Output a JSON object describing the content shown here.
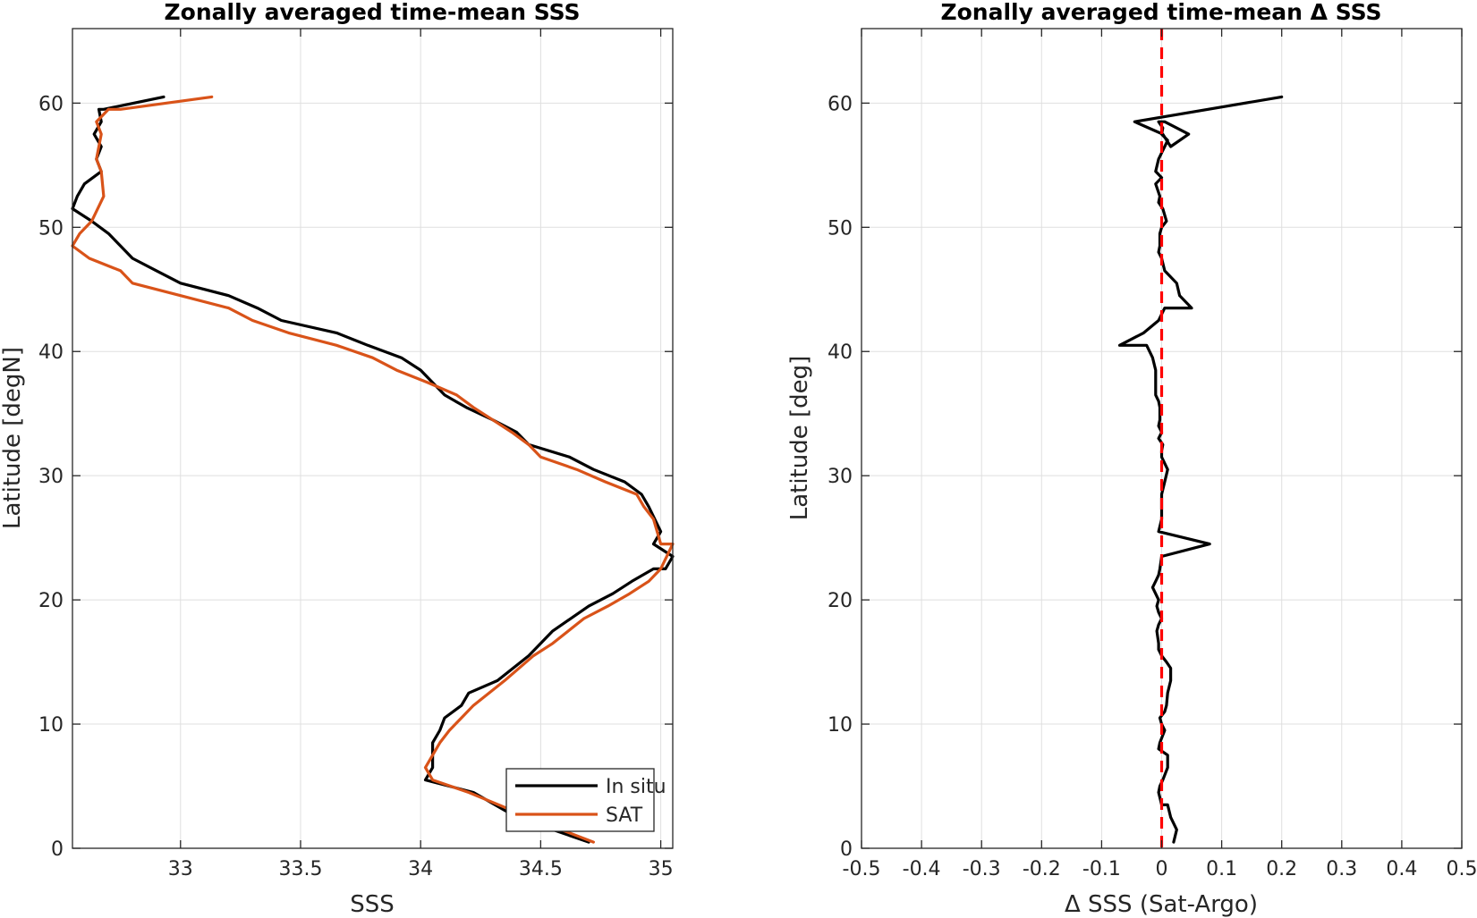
{
  "chart_data": [
    {
      "type": "line",
      "title": "Zonally averaged time-mean SSS",
      "xlabel": "SSS",
      "ylabel": "Latitude [degN]",
      "xlim": [
        32.55,
        35.05
      ],
      "ylim": [
        0,
        66
      ],
      "xticks": [
        33,
        33.5,
        34,
        34.5,
        35
      ],
      "xtick_labels": [
        "33",
        "33.5",
        "34",
        "34.5",
        "35"
      ],
      "yticks": [
        0,
        10,
        20,
        30,
        40,
        50,
        60
      ],
      "ytick_labels": [
        "0",
        "10",
        "20",
        "30",
        "40",
        "50",
        "60"
      ],
      "grid": true,
      "legend": "bottom-right",
      "series": [
        {
          "name": "In situ",
          "color": "#000000",
          "x": [
            34.7,
            34.4,
            34.22,
            34.02,
            34.05,
            34.05,
            34.08,
            34.1,
            34.17,
            34.2,
            34.32,
            34.45,
            34.55,
            34.7,
            34.8,
            34.88,
            34.97,
            35.02,
            35.05,
            34.97,
            35.0,
            34.95,
            34.92,
            34.85,
            34.72,
            34.62,
            34.45,
            34.4,
            34.3,
            34.19,
            34.1,
            34.05,
            34.0,
            33.92,
            33.78,
            33.65,
            33.42,
            33.32,
            33.2,
            33.0,
            32.9,
            32.8,
            32.75,
            32.7,
            32.63,
            32.55,
            32.57,
            32.6,
            32.67,
            32.65,
            32.67,
            32.64,
            32.67,
            32.66,
            32.68,
            32.93
          ],
          "y": [
            0.5,
            2.5,
            4.5,
            5.5,
            6.5,
            8.5,
            9.5,
            10.5,
            11.5,
            12.5,
            13.5,
            15.5,
            17.5,
            19.5,
            20.5,
            21.5,
            22.5,
            22.5,
            23.5,
            24.5,
            25.5,
            27.5,
            28.5,
            29.5,
            30.5,
            31.5,
            32.5,
            33.5,
            34.5,
            35.5,
            36.5,
            37.5,
            38.5,
            39.5,
            40.5,
            41.5,
            42.5,
            43.5,
            44.5,
            45.5,
            46.5,
            47.5,
            48.5,
            49.5,
            50.5,
            51.5,
            52.5,
            53.5,
            54.5,
            55.5,
            56.5,
            57.5,
            58.5,
            59.5,
            59.5,
            60.5
          ]
        },
        {
          "name": "SAT",
          "color": "#D95319",
          "x": [
            34.72,
            34.45,
            34.2,
            34.05,
            34.02,
            34.05,
            34.08,
            34.12,
            34.17,
            34.22,
            34.35,
            34.47,
            34.55,
            34.68,
            34.78,
            34.87,
            34.95,
            35.0,
            35.05,
            35.0,
            34.97,
            34.93,
            34.9,
            34.77,
            34.65,
            34.5,
            34.45,
            34.38,
            34.3,
            34.22,
            34.15,
            34.03,
            33.9,
            33.8,
            33.65,
            33.45,
            33.3,
            33.2,
            33.0,
            32.8,
            32.75,
            32.62,
            32.55,
            32.58,
            32.63,
            32.68,
            32.67,
            32.65,
            32.67,
            32.65,
            32.7,
            32.75,
            33.13
          ],
          "y": [
            0.5,
            2.5,
            4.5,
            5.5,
            6.5,
            7.5,
            8.5,
            9.5,
            10.5,
            11.5,
            13.5,
            15.5,
            16.5,
            18.5,
            19.5,
            20.5,
            21.5,
            22.5,
            24.5,
            24.5,
            26.5,
            27.5,
            28.5,
            29.5,
            30.5,
            31.5,
            32.5,
            33.5,
            34.5,
            35.5,
            36.5,
            37.5,
            38.5,
            39.5,
            40.5,
            41.5,
            42.5,
            43.5,
            44.5,
            45.5,
            46.5,
            47.5,
            48.5,
            49.5,
            50.5,
            52.5,
            54.5,
            55.5,
            57.5,
            58.5,
            59.5,
            59.5,
            60.5
          ]
        }
      ]
    },
    {
      "type": "line",
      "title": "Zonally averaged time-mean Δ SSS",
      "xlabel": "Δ SSS (Sat-Argo)",
      "ylabel": "Latitude [deg]",
      "xlim": [
        -0.5,
        0.5
      ],
      "ylim": [
        0,
        66
      ],
      "xticks": [
        -0.5,
        -0.4,
        -0.3,
        -0.2,
        -0.1,
        0,
        0.1,
        0.2,
        0.3,
        0.4,
        0.5
      ],
      "xtick_labels": [
        "-0.5",
        "-0.4",
        "-0.3",
        "-0.2",
        "-0.1",
        "0",
        "0.1",
        "0.2",
        "0.3",
        "0.4",
        "0.5"
      ],
      "yticks": [
        0,
        10,
        20,
        30,
        40,
        50,
        60
      ],
      "ytick_labels": [
        "0",
        "10",
        "20",
        "30",
        "40",
        "50",
        "60"
      ],
      "grid": true,
      "reference_line": {
        "x": 0,
        "color": "#FF0000",
        "style": "dashed"
      },
      "series": [
        {
          "color": "#000000",
          "x": [
            0.02,
            0.025,
            0.015,
            0.01,
            0.0,
            -0.005,
            -0.003,
            0.002,
            0.01,
            0.01,
            -0.005,
            -0.003,
            0.005,
            0.0,
            -0.003,
            0.005,
            0.008,
            0.01,
            0.015,
            0.015,
            0.008,
            0.0,
            -0.005,
            -0.005,
            -0.008,
            -0.005,
            0.0,
            -0.005,
            -0.008,
            -0.005,
            -0.01,
            -0.015,
            -0.01,
            -0.005,
            -0.003,
            0.0,
            0.08,
            -0.005,
            0.0,
            0.0,
            0.0,
            0.005,
            0.01,
            0.0,
            0.0,
            0.002,
            -0.005,
            0.0,
            -0.005,
            -0.003,
            -0.003,
            -0.005,
            -0.01,
            -0.01,
            -0.01,
            -0.015,
            -0.025,
            -0.07,
            -0.03,
            -0.005,
            0.005,
            0.05,
            0.03,
            0.025,
            0.005,
            0.0,
            -0.005,
            -0.003,
            -0.003,
            0.0,
            0.008,
            0.002,
            -0.005,
            -0.003,
            -0.01,
            0.0,
            -0.01,
            -0.005,
            0.0,
            0.005,
            0.01,
            0.0,
            0.002,
            -0.005,
            0.005,
            0.045,
            0.015,
            0.002,
            -0.045,
            0.2
          ],
          "y": [
            0.5,
            1.5,
            2.5,
            3.5,
            3.5,
            4.5,
            5.0,
            5.5,
            6.5,
            7.5,
            8.0,
            8.5,
            9.5,
            10.0,
            10.5,
            11.0,
            11.5,
            12.5,
            13.5,
            14.5,
            15.0,
            15.5,
            16.0,
            16.5,
            17.5,
            18.0,
            18.5,
            19.0,
            19.5,
            20.0,
            20.5,
            21.0,
            21.5,
            22.0,
            22.5,
            23.5,
            24.5,
            25.5,
            26.5,
            27.5,
            28.5,
            29.5,
            30.5,
            31.5,
            32.0,
            32.5,
            33.0,
            33.5,
            34.0,
            34.5,
            35.5,
            36.0,
            36.5,
            37.5,
            38.5,
            39.5,
            40.5,
            40.5,
            41.5,
            42.5,
            43.5,
            43.5,
            44.5,
            45.5,
            46.5,
            47.5,
            48.0,
            48.5,
            49.5,
            50.0,
            50.5,
            51.5,
            52.0,
            52.5,
            53.5,
            54.0,
            54.5,
            55.5,
            56.0,
            56.5,
            57.0,
            57.5,
            58.0,
            58.5,
            58.5,
            57.5,
            56.5,
            57.5,
            58.5,
            60.5
          ]
        }
      ]
    }
  ]
}
